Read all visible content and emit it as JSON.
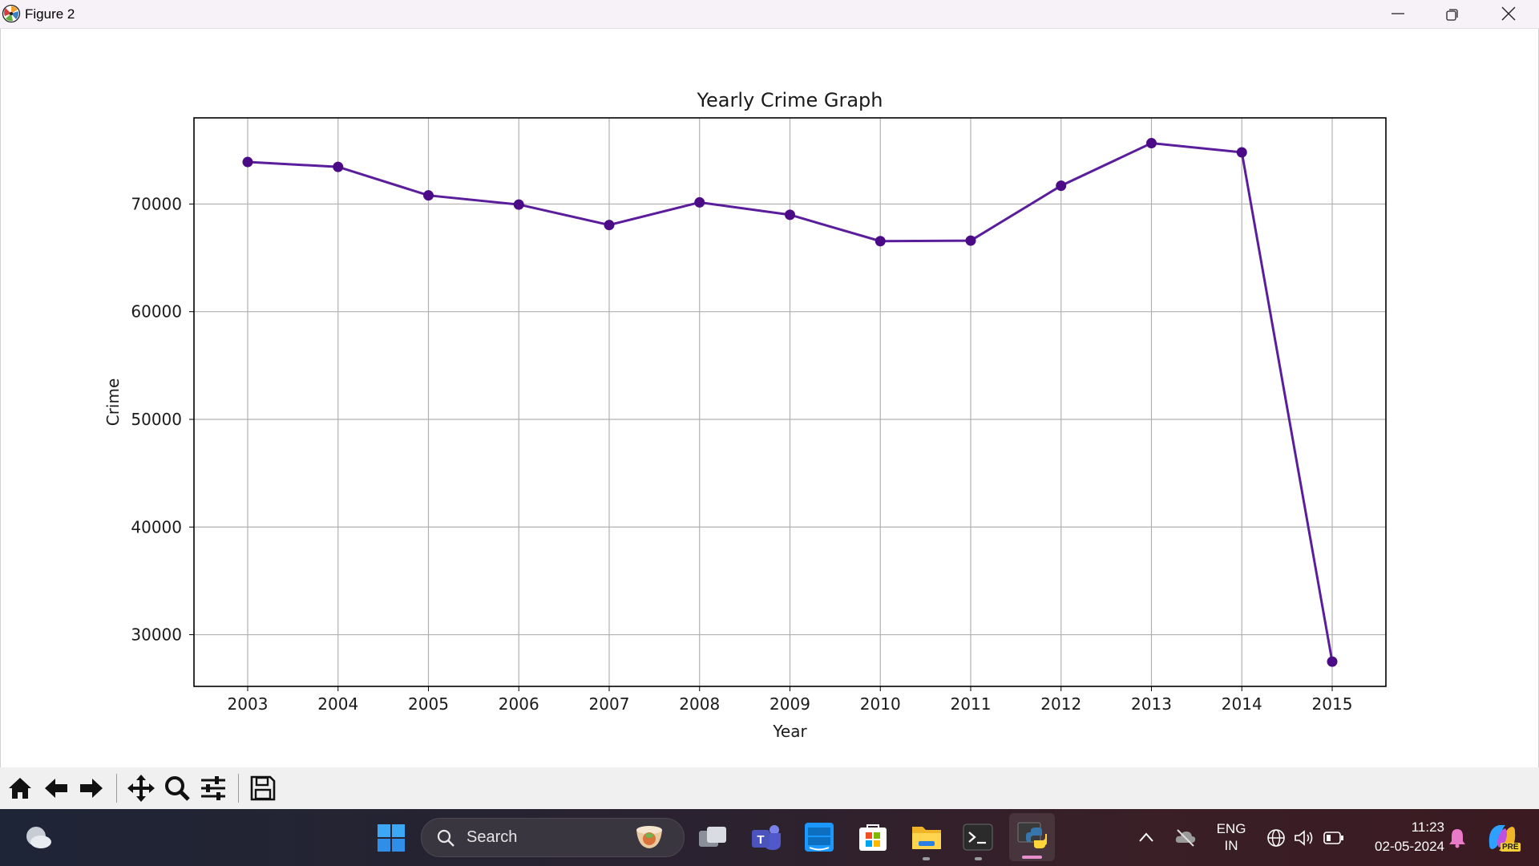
{
  "window": {
    "title": "Figure 2",
    "controls": [
      "minimize",
      "restore",
      "close"
    ]
  },
  "chart_data": {
    "type": "line",
    "title": "Yearly Crime Graph",
    "xlabel": "Year",
    "ylabel": "Crime",
    "x": [
      "2003",
      "2004",
      "2005",
      "2006",
      "2007",
      "2008",
      "2009",
      "2010",
      "2011",
      "2012",
      "2013",
      "2014",
      "2015"
    ],
    "values": [
      73900,
      73450,
      70800,
      69950,
      68050,
      70150,
      69000,
      66550,
      66600,
      71700,
      75650,
      74800,
      27500
    ],
    "yticks": [
      "30000",
      "40000",
      "50000",
      "60000",
      "70000"
    ],
    "ylim": [
      25200,
      78000
    ],
    "grid": true,
    "line_color": "#5a1d9b",
    "marker_color": "#4b0a86"
  },
  "toolbar": {
    "buttons": [
      "home-icon",
      "back-arrow-icon",
      "forward-arrow-icon",
      "pan-icon",
      "zoom-icon",
      "configure-subplots-icon",
      "save-icon"
    ]
  },
  "taskbar": {
    "search_placeholder": "Search",
    "language_line1": "ENG",
    "language_line2": "IN",
    "time": "11:23",
    "date": "02-05-2024",
    "copilot_badge": "PRE"
  }
}
